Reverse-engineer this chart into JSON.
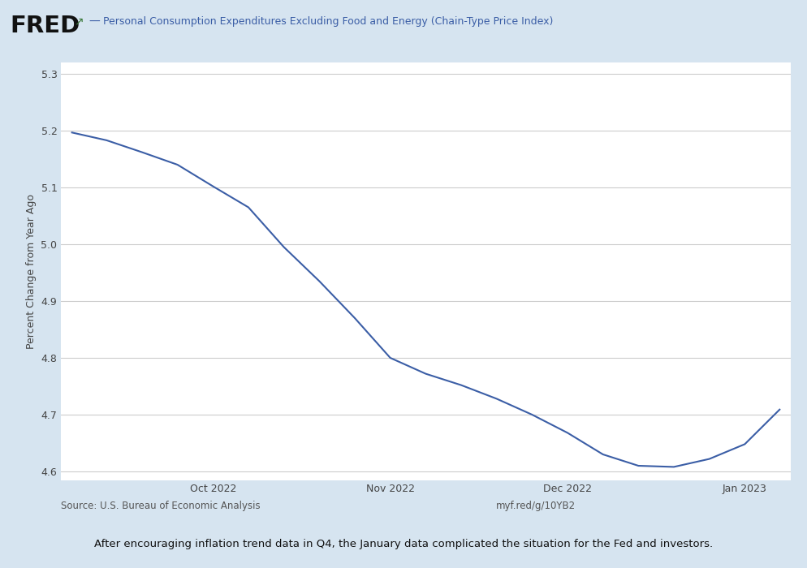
{
  "legend_line_label": "Personal Consumption Expenditures Excluding Food and Energy (Chain-Type Price Index)",
  "ylabel": "Percent Change from Year Ago",
  "source_left": "Source: U.S. Bureau of Economic Analysis",
  "source_right": "myf.red/g/10YB2",
  "caption": "After encouraging inflation trend data in Q4, the January data complicated the situation for the Fed and investors.",
  "line_color": "#3b5ea6",
  "background_color": "#d6e4f0",
  "plot_bg_color": "#ffffff",
  "x_values": [
    0,
    1,
    2,
    3,
    4,
    5,
    6,
    7,
    8,
    9,
    10,
    11,
    12,
    13,
    14,
    15,
    16,
    17,
    18,
    19,
    20
  ],
  "y_values": [
    5.197,
    5.183,
    5.162,
    5.14,
    5.102,
    5.065,
    4.995,
    4.935,
    4.87,
    4.8,
    4.772,
    4.752,
    4.728,
    4.7,
    4.668,
    4.63,
    4.61,
    4.608,
    4.622,
    4.648,
    4.71
  ],
  "x_tick_positions": [
    4,
    9,
    14,
    19
  ],
  "x_tick_labels": [
    "Oct 2022",
    "Nov 2022",
    "Dec 2022",
    "Jan 2023"
  ],
  "ylim": [
    4.585,
    5.32
  ],
  "yticks": [
    4.6,
    4.7,
    4.8,
    4.9,
    5.0,
    5.1,
    5.2,
    5.3
  ],
  "xlim": [
    -0.3,
    20.3
  ],
  "line_width": 1.5
}
